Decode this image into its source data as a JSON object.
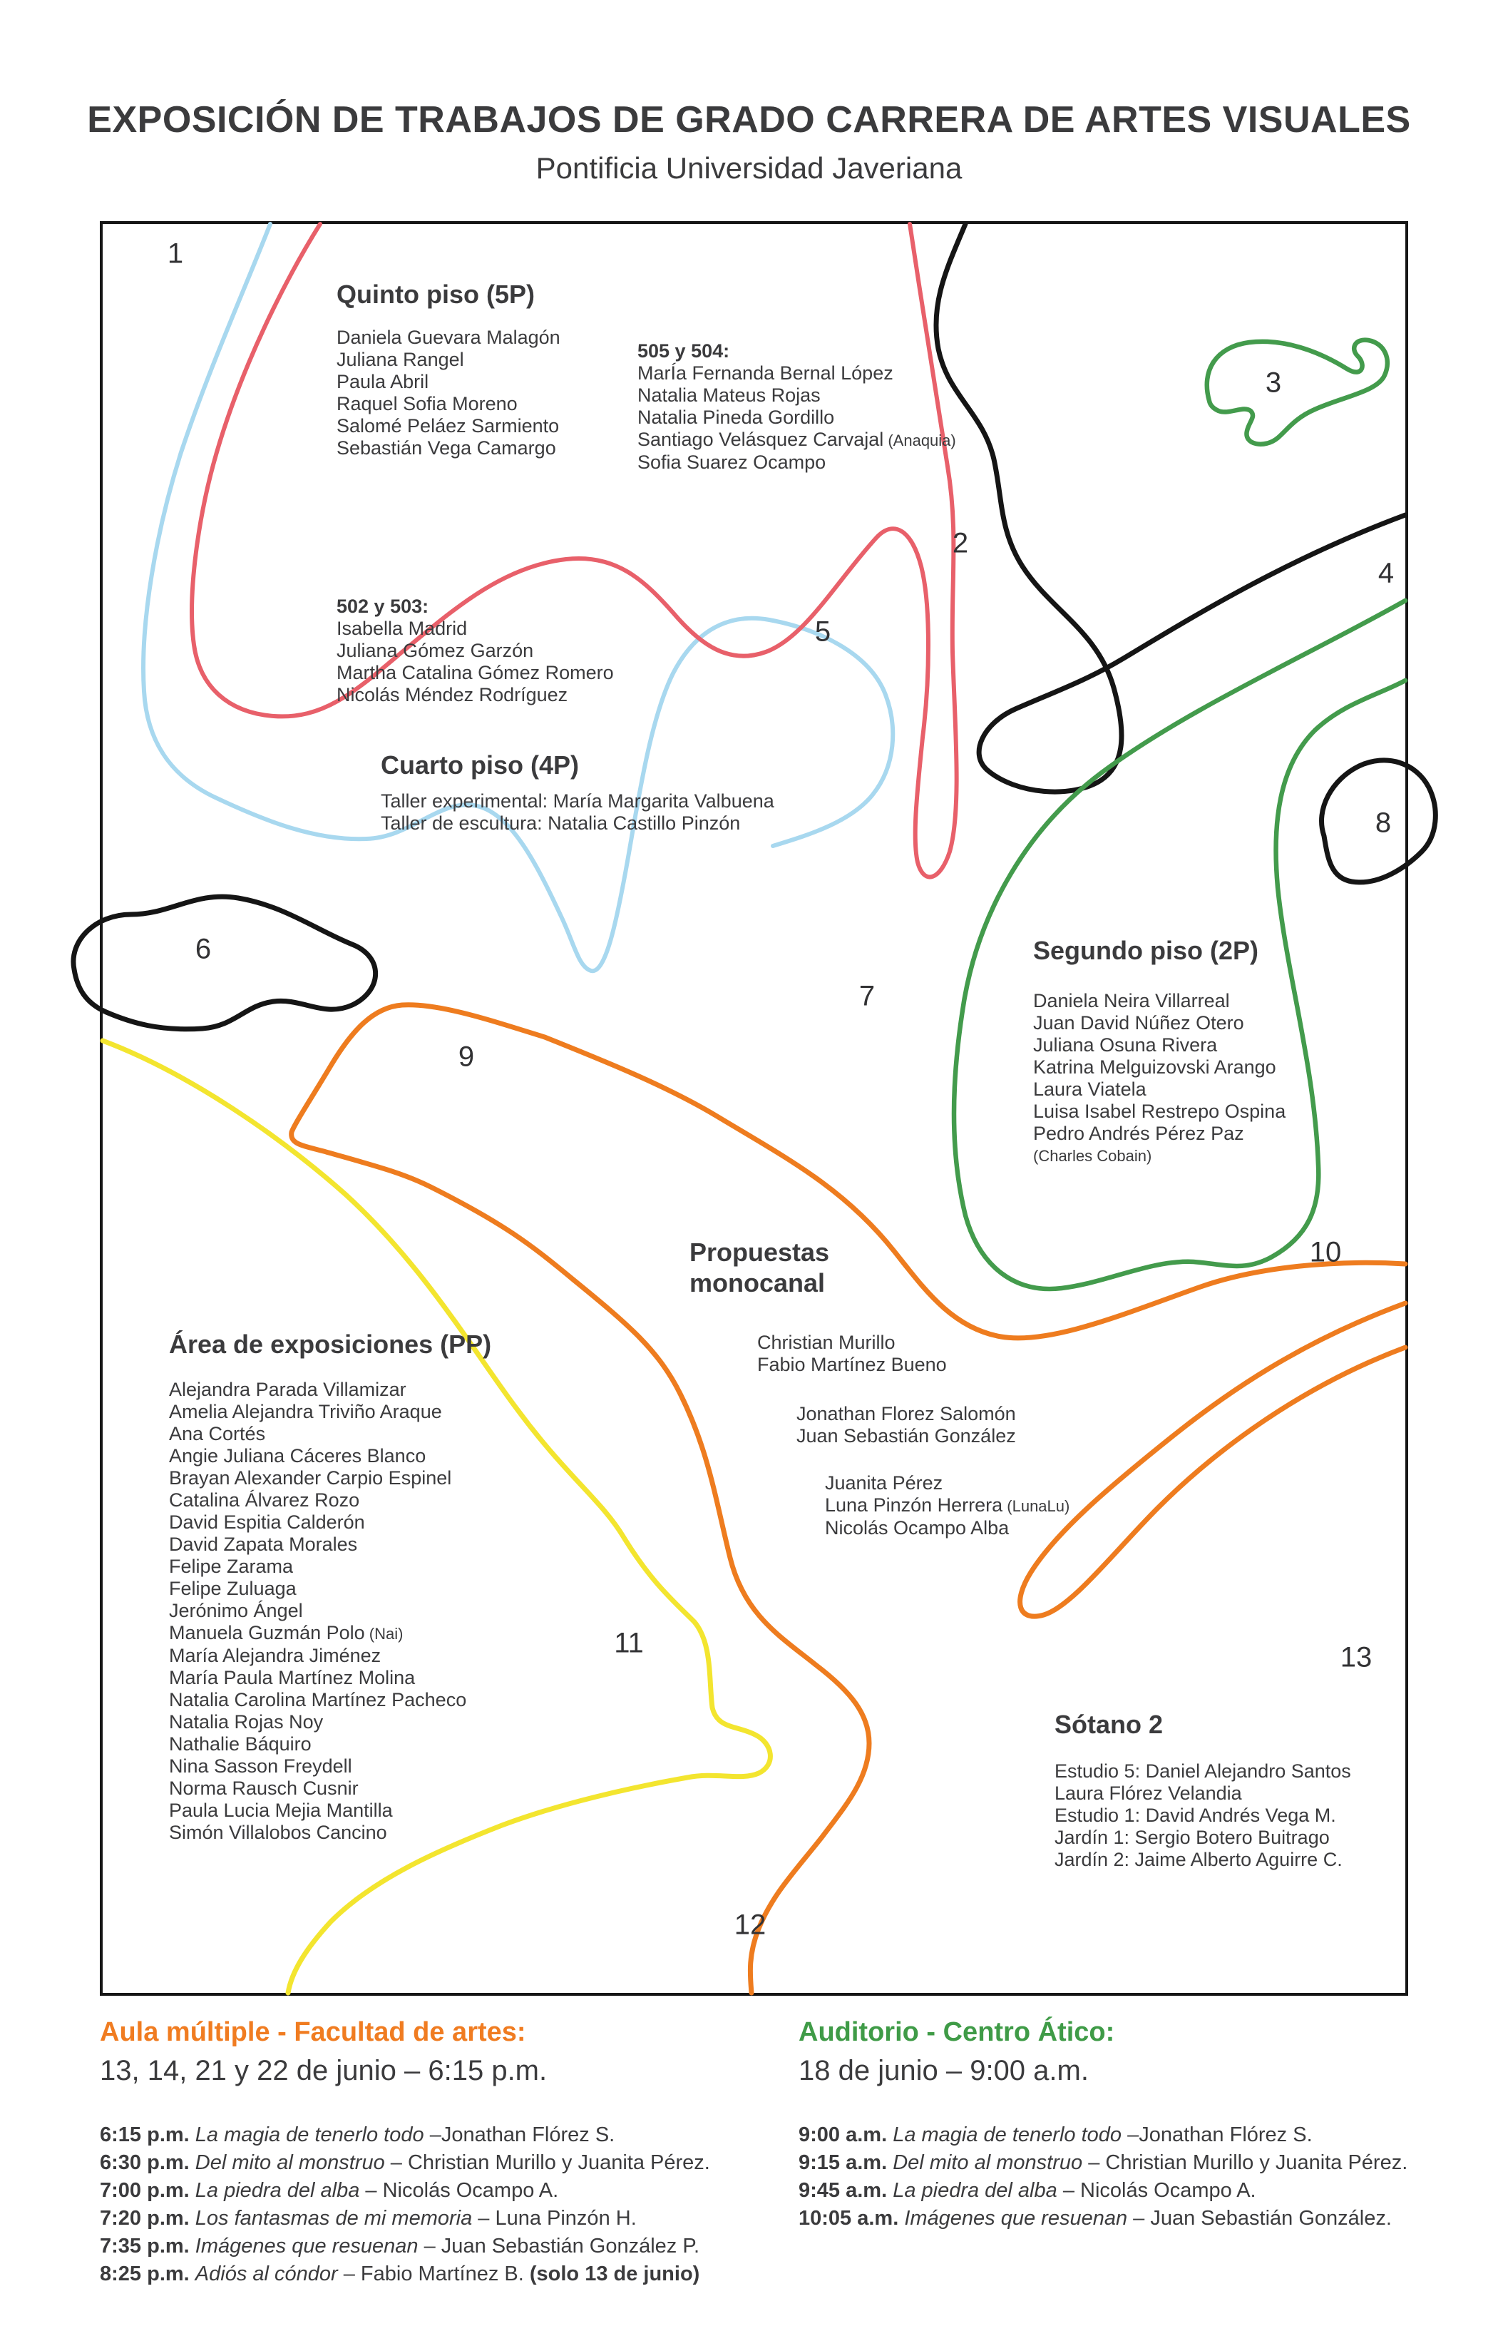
{
  "title": "EXPOSICIÓN DE TRABAJOS DE GRADO CARRERA DE ARTES VISUALES",
  "subtitle": "Pontificia Universidad Javeriana",
  "colors": {
    "red_line": "#e8606a",
    "blue_line": "#a8d8ef",
    "black_line": "#151515",
    "green_line": "#439b4c",
    "orange_line": "#ee7c1f",
    "yellow_line": "#f3e52f",
    "heading_orange": "#f07c21",
    "heading_green": "#3f9b47",
    "text": "#3b3b3d"
  },
  "map": {
    "numbers": [
      "1",
      "2",
      "3",
      "4",
      "5",
      "6",
      "7",
      "8",
      "9",
      "10",
      "11",
      "12",
      "13"
    ],
    "sections": {
      "quinto": {
        "heading": "Quinto piso (5P)",
        "names": [
          "Daniela Guevara Malagón",
          "Juliana Rangel",
          "Paula Abril",
          "Raquel Sofia Moreno",
          "Salomé Peláez Sarmiento",
          "Sebastián Vega Camargo"
        ]
      },
      "rooms502": {
        "heading": "502 y 503:",
        "names": [
          "Isabella Madrid",
          "Juliana Gómez Garzón",
          "Martha Catalina Gómez Romero",
          "Nicolás Méndez Rodríguez"
        ]
      },
      "rooms505": {
        "heading": "505 y 504:",
        "names": [
          "MarÍa Fernanda Bernal López",
          "Natalia Mateus Rojas",
          "Natalia Pineda Gordillo",
          {
            "text": "Santiago Velásquez Carvajal",
            "note": "(Anaquia)"
          },
          "Sofia Suarez Ocampo"
        ]
      },
      "cuarto": {
        "heading": "Cuarto piso (4P)",
        "names": [
          "Taller experimental: María Margarita Valbuena",
          "Taller de escultura: Natalia Castillo Pinzón"
        ]
      },
      "segundo": {
        "heading": "Segundo piso (2P)",
        "names": [
          "Daniela Neira Villarreal",
          "Juan David Núñez Otero",
          "Juliana Osuna Rivera",
          "Katrina Melguizovski Arango",
          "Laura Viatela",
          "Luisa Isabel Restrepo Ospina",
          "Pedro Andrés Pérez Paz",
          {
            "text": "(Charles Cobain)",
            "small": true
          }
        ]
      },
      "propuestas": {
        "heading": "Propuestas monocanal",
        "groups": [
          {
            "names": [
              "Christian Murillo",
              "Fabio Martínez Bueno"
            ]
          },
          {
            "names": [
              "Jonathan Florez Salomón",
              "Juan Sebastián González"
            ]
          },
          {
            "names": [
              "Juanita Pérez",
              {
                "text": "Luna Pinzón Herrera",
                "note": "(LunaLu)"
              },
              "Nicolás Ocampo Alba"
            ]
          }
        ]
      },
      "area": {
        "heading": "Área de exposiciones (PP)",
        "names": [
          "Alejandra Parada Villamizar",
          "Amelia Alejandra Triviño Araque",
          "Ana Cortés",
          "Angie Juliana Cáceres Blanco",
          "Brayan Alexander Carpio Espinel",
          "Catalina Álvarez Rozo",
          "David Espitia Calderón",
          "David Zapata Morales",
          "Felipe Zarama",
          "Felipe Zuluaga",
          "Jerónimo Ángel",
          {
            "text": "Manuela Guzmán Polo",
            "note": "(Nai)"
          },
          "María Alejandra Jiménez",
          "María Paula Martínez Molina",
          "Natalia Carolina Martínez Pacheco",
          "Natalia Rojas Noy",
          "Nathalie Báquiro",
          "Nina Sasson Freydell",
          "Norma Rausch Cusnir",
          "Paula Lucia Mejia Mantilla",
          "Simón Villalobos Cancino"
        ]
      },
      "sotano": {
        "heading": "Sótano 2",
        "names": [
          "Estudio 5: Daniel Alejandro Santos",
          "Laura Flórez Velandia",
          "Estudio 1: David Andrés Vega M.",
          "Jardín 1: Sergio Botero Buitrago",
          "Jardín 2: Jaime Alberto Aguirre C."
        ]
      }
    }
  },
  "schedules": {
    "left": {
      "heading": "Aula múltiple - Facultad de artes:",
      "subtitle": "13, 14, 21 y 22 de junio – 6:15 p.m.",
      "items": [
        {
          "time": "6:15 p.m.",
          "title": "La magia de tenerlo todo",
          "who": "–Jonathan Flórez S."
        },
        {
          "time": "6:30 p.m.",
          "title": "Del mito al monstruo",
          "who": "– Christian Murillo y Juanita Pérez."
        },
        {
          "time": "7:00 p.m.",
          "title": "La piedra del alba",
          "who": "– Nicolás Ocampo A."
        },
        {
          "time": "7:20 p.m.",
          "title": "Los fantasmas de mi memoria",
          "who": "– Luna Pinzón H."
        },
        {
          "time": "7:35 p.m.",
          "title": "Imágenes que resuenan",
          "who": "– Juan Sebastián González P."
        },
        {
          "time": "8:25 p.m.",
          "title": "Adiós al cóndor",
          "who": "– Fabio Martínez B.",
          "extra": "(solo 13 de junio)"
        }
      ]
    },
    "right": {
      "heading": "Auditorio - Centro Ático:",
      "subtitle": "18 de junio – 9:00 a.m.",
      "items": [
        {
          "time": "9:00 a.m.",
          "title": "La magia de tenerlo todo",
          "who": "–Jonathan Flórez S."
        },
        {
          "time": "9:15 a.m.",
          "title": "Del mito al monstruo",
          "who": "– Christian Murillo y Juanita Pérez."
        },
        {
          "time": "9:45 a.m.",
          "title": "La piedra del alba",
          "who": "– Nicolás Ocampo A."
        },
        {
          "time": "10:05 a.m.",
          "title": "Imágenes que resuenan",
          "who": "– Juan Sebastián González."
        }
      ]
    },
    "footnote": "."
  }
}
